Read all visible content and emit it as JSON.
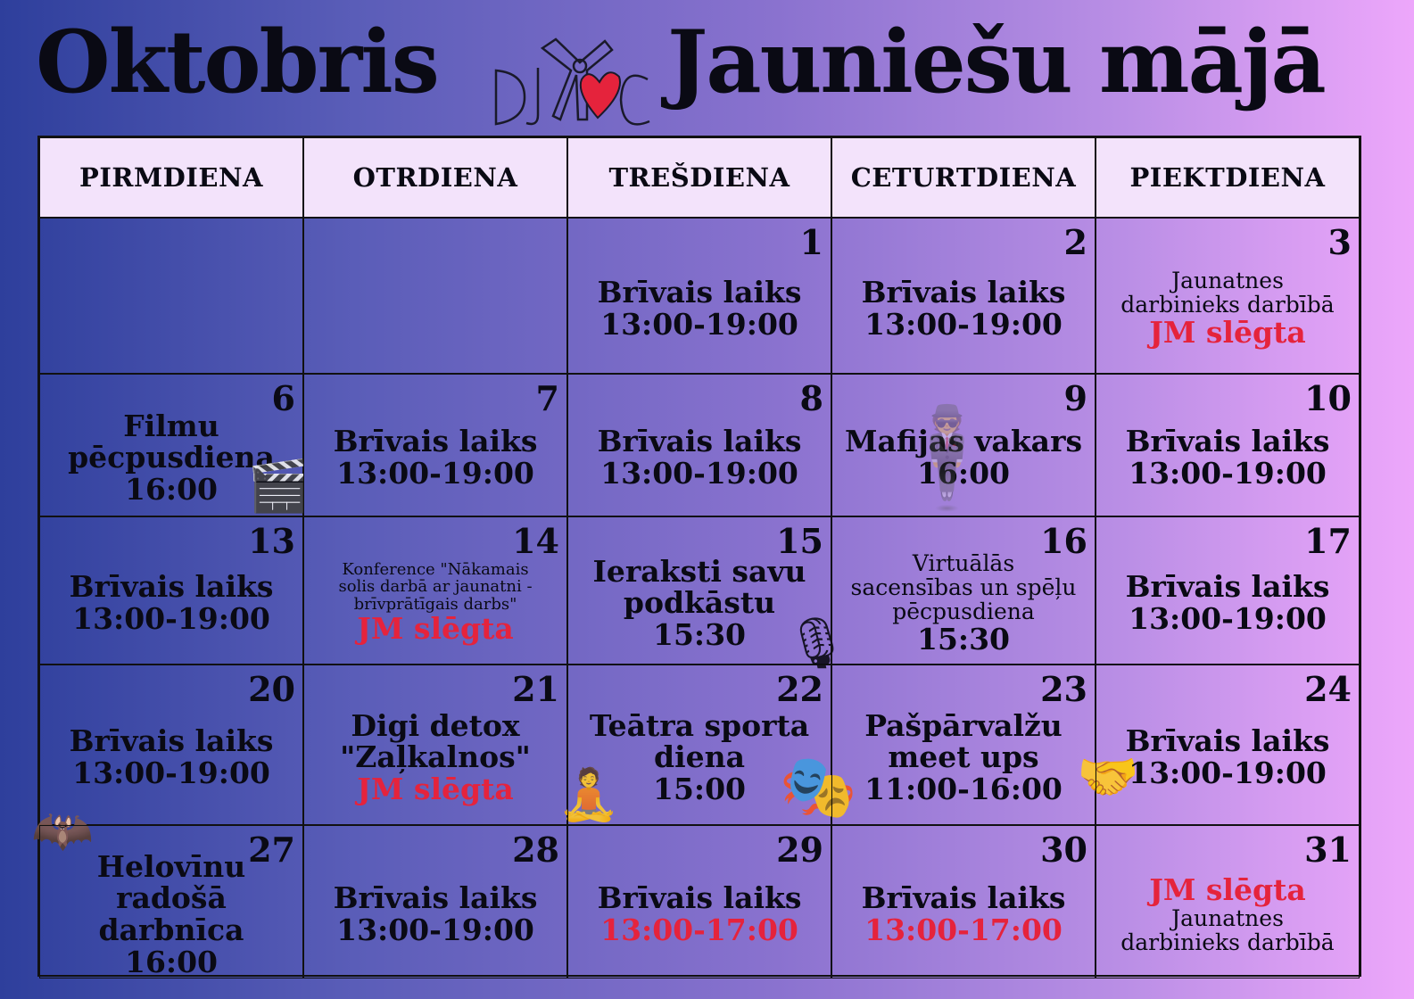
{
  "title_left": "Oktobris",
  "title_right": "Jauniešu mājā",
  "logo_text": "DJMC",
  "colors": {
    "accent_red": "#e5233c",
    "header_bg": "#f3e3fb",
    "gradient_start": "#2e3f9c",
    "gradient_end": "#eda7fb"
  },
  "weekdays": [
    "PIRMDIENA",
    "OTRDIENA",
    "TREŠDIENA",
    "CETURTDIENA",
    "PIEKTDIENA"
  ],
  "weeks": [
    [
      {
        "day": "",
        "lines": []
      },
      {
        "day": "",
        "lines": []
      },
      {
        "day": "1",
        "lines": [
          {
            "text": "Brīvais laiks"
          },
          {
            "text": "13:00-19:00"
          }
        ]
      },
      {
        "day": "2",
        "lines": [
          {
            "text": "Brīvais laiks"
          },
          {
            "text": "13:00-19:00"
          }
        ]
      },
      {
        "day": "3",
        "lines": [
          {
            "text": "Jaunatnes",
            "size": "sm"
          },
          {
            "text": "darbinieks darbībā",
            "size": "sm"
          },
          {
            "text": "JM slēgta",
            "red": true
          }
        ]
      }
    ],
    [
      {
        "day": "6",
        "lines": [
          {
            "text": "Filmu"
          },
          {
            "text": "pēcpusdiena"
          },
          {
            "text": "16:00"
          }
        ],
        "icon": "film-clapperboard-icon"
      },
      {
        "day": "7",
        "lines": [
          {
            "text": "Brīvais laiks"
          },
          {
            "text": "13:00-19:00"
          }
        ]
      },
      {
        "day": "8",
        "lines": [
          {
            "text": "Brīvais laiks"
          },
          {
            "text": "13:00-19:00"
          }
        ]
      },
      {
        "day": "9",
        "lines": [
          {
            "text": "Mafijas vakars"
          },
          {
            "text": "16:00"
          }
        ],
        "icon": "mafia-silhouettes-icon"
      },
      {
        "day": "10",
        "lines": [
          {
            "text": "Brīvais laiks"
          },
          {
            "text": "13:00-19:00"
          }
        ]
      }
    ],
    [
      {
        "day": "13",
        "lines": [
          {
            "text": "Brīvais laiks"
          },
          {
            "text": "13:00-19:00"
          }
        ]
      },
      {
        "day": "14",
        "lines": [
          {
            "text": "Konference \"Nākamais",
            "size": "xs"
          },
          {
            "text": "solis darbā ar jaunatni -",
            "size": "xs"
          },
          {
            "text": "brīvprātīgais darbs\"",
            "size": "xs"
          },
          {
            "text": "JM slēgta",
            "red": true
          }
        ]
      },
      {
        "day": "15",
        "lines": [
          {
            "text": "Ieraksti savu"
          },
          {
            "text": "podkāstu"
          },
          {
            "text": "15:30"
          }
        ],
        "icon": "microphone-icon"
      },
      {
        "day": "16",
        "lines": [
          {
            "text": "Virtuālās",
            "size": "sm"
          },
          {
            "text": "sacensības un spēļu",
            "size": "sm"
          },
          {
            "text": "pēcpusdiena",
            "size": "sm"
          },
          {
            "text": "15:30"
          }
        ]
      },
      {
        "day": "17",
        "lines": [
          {
            "text": "Brīvais laiks"
          },
          {
            "text": "13:00-19:00"
          }
        ]
      }
    ],
    [
      {
        "day": "20",
        "lines": [
          {
            "text": "Brīvais laiks"
          },
          {
            "text": "13:00-19:00"
          }
        ],
        "icon": "bats-icon"
      },
      {
        "day": "21",
        "lines": [
          {
            "text": "Digi detox"
          },
          {
            "text": "\"Zaļkalnos\""
          },
          {
            "text": "JM slēgta",
            "red": true
          }
        ],
        "icon": "phone-meditation-icon"
      },
      {
        "day": "22",
        "lines": [
          {
            "text": "Teātra sporta"
          },
          {
            "text": "diena"
          },
          {
            "text": "15:00"
          }
        ],
        "icon": "theater-masks-icon"
      },
      {
        "day": "23",
        "lines": [
          {
            "text": "Pašpārvalžu"
          },
          {
            "text": "meet ups"
          },
          {
            "text": "11:00-16:00"
          }
        ],
        "icon": "handshake-icon"
      },
      {
        "day": "24",
        "lines": [
          {
            "text": "Brīvais laiks"
          },
          {
            "text": "13:00-19:00"
          }
        ]
      }
    ],
    [
      {
        "day": "27",
        "lines": [
          {
            "text": "Helovīnu"
          },
          {
            "text": "radošā darbnīca"
          },
          {
            "text": "16:00"
          }
        ]
      },
      {
        "day": "28",
        "lines": [
          {
            "text": "Brīvais laiks"
          },
          {
            "text": "13:00-19:00"
          }
        ]
      },
      {
        "day": "29",
        "lines": [
          {
            "text": "Brīvais laiks"
          },
          {
            "text": "13:00-17:00",
            "red": true
          }
        ]
      },
      {
        "day": "30",
        "lines": [
          {
            "text": "Brīvais laiks"
          },
          {
            "text": "13:00-17:00",
            "red": true
          }
        ]
      },
      {
        "day": "31",
        "lines": [
          {
            "text": "JM slēgta",
            "red": true
          },
          {
            "text": "Jaunatnes",
            "size": "sm"
          },
          {
            "text": "darbinieks darbībā",
            "size": "sm"
          }
        ]
      }
    ]
  ]
}
